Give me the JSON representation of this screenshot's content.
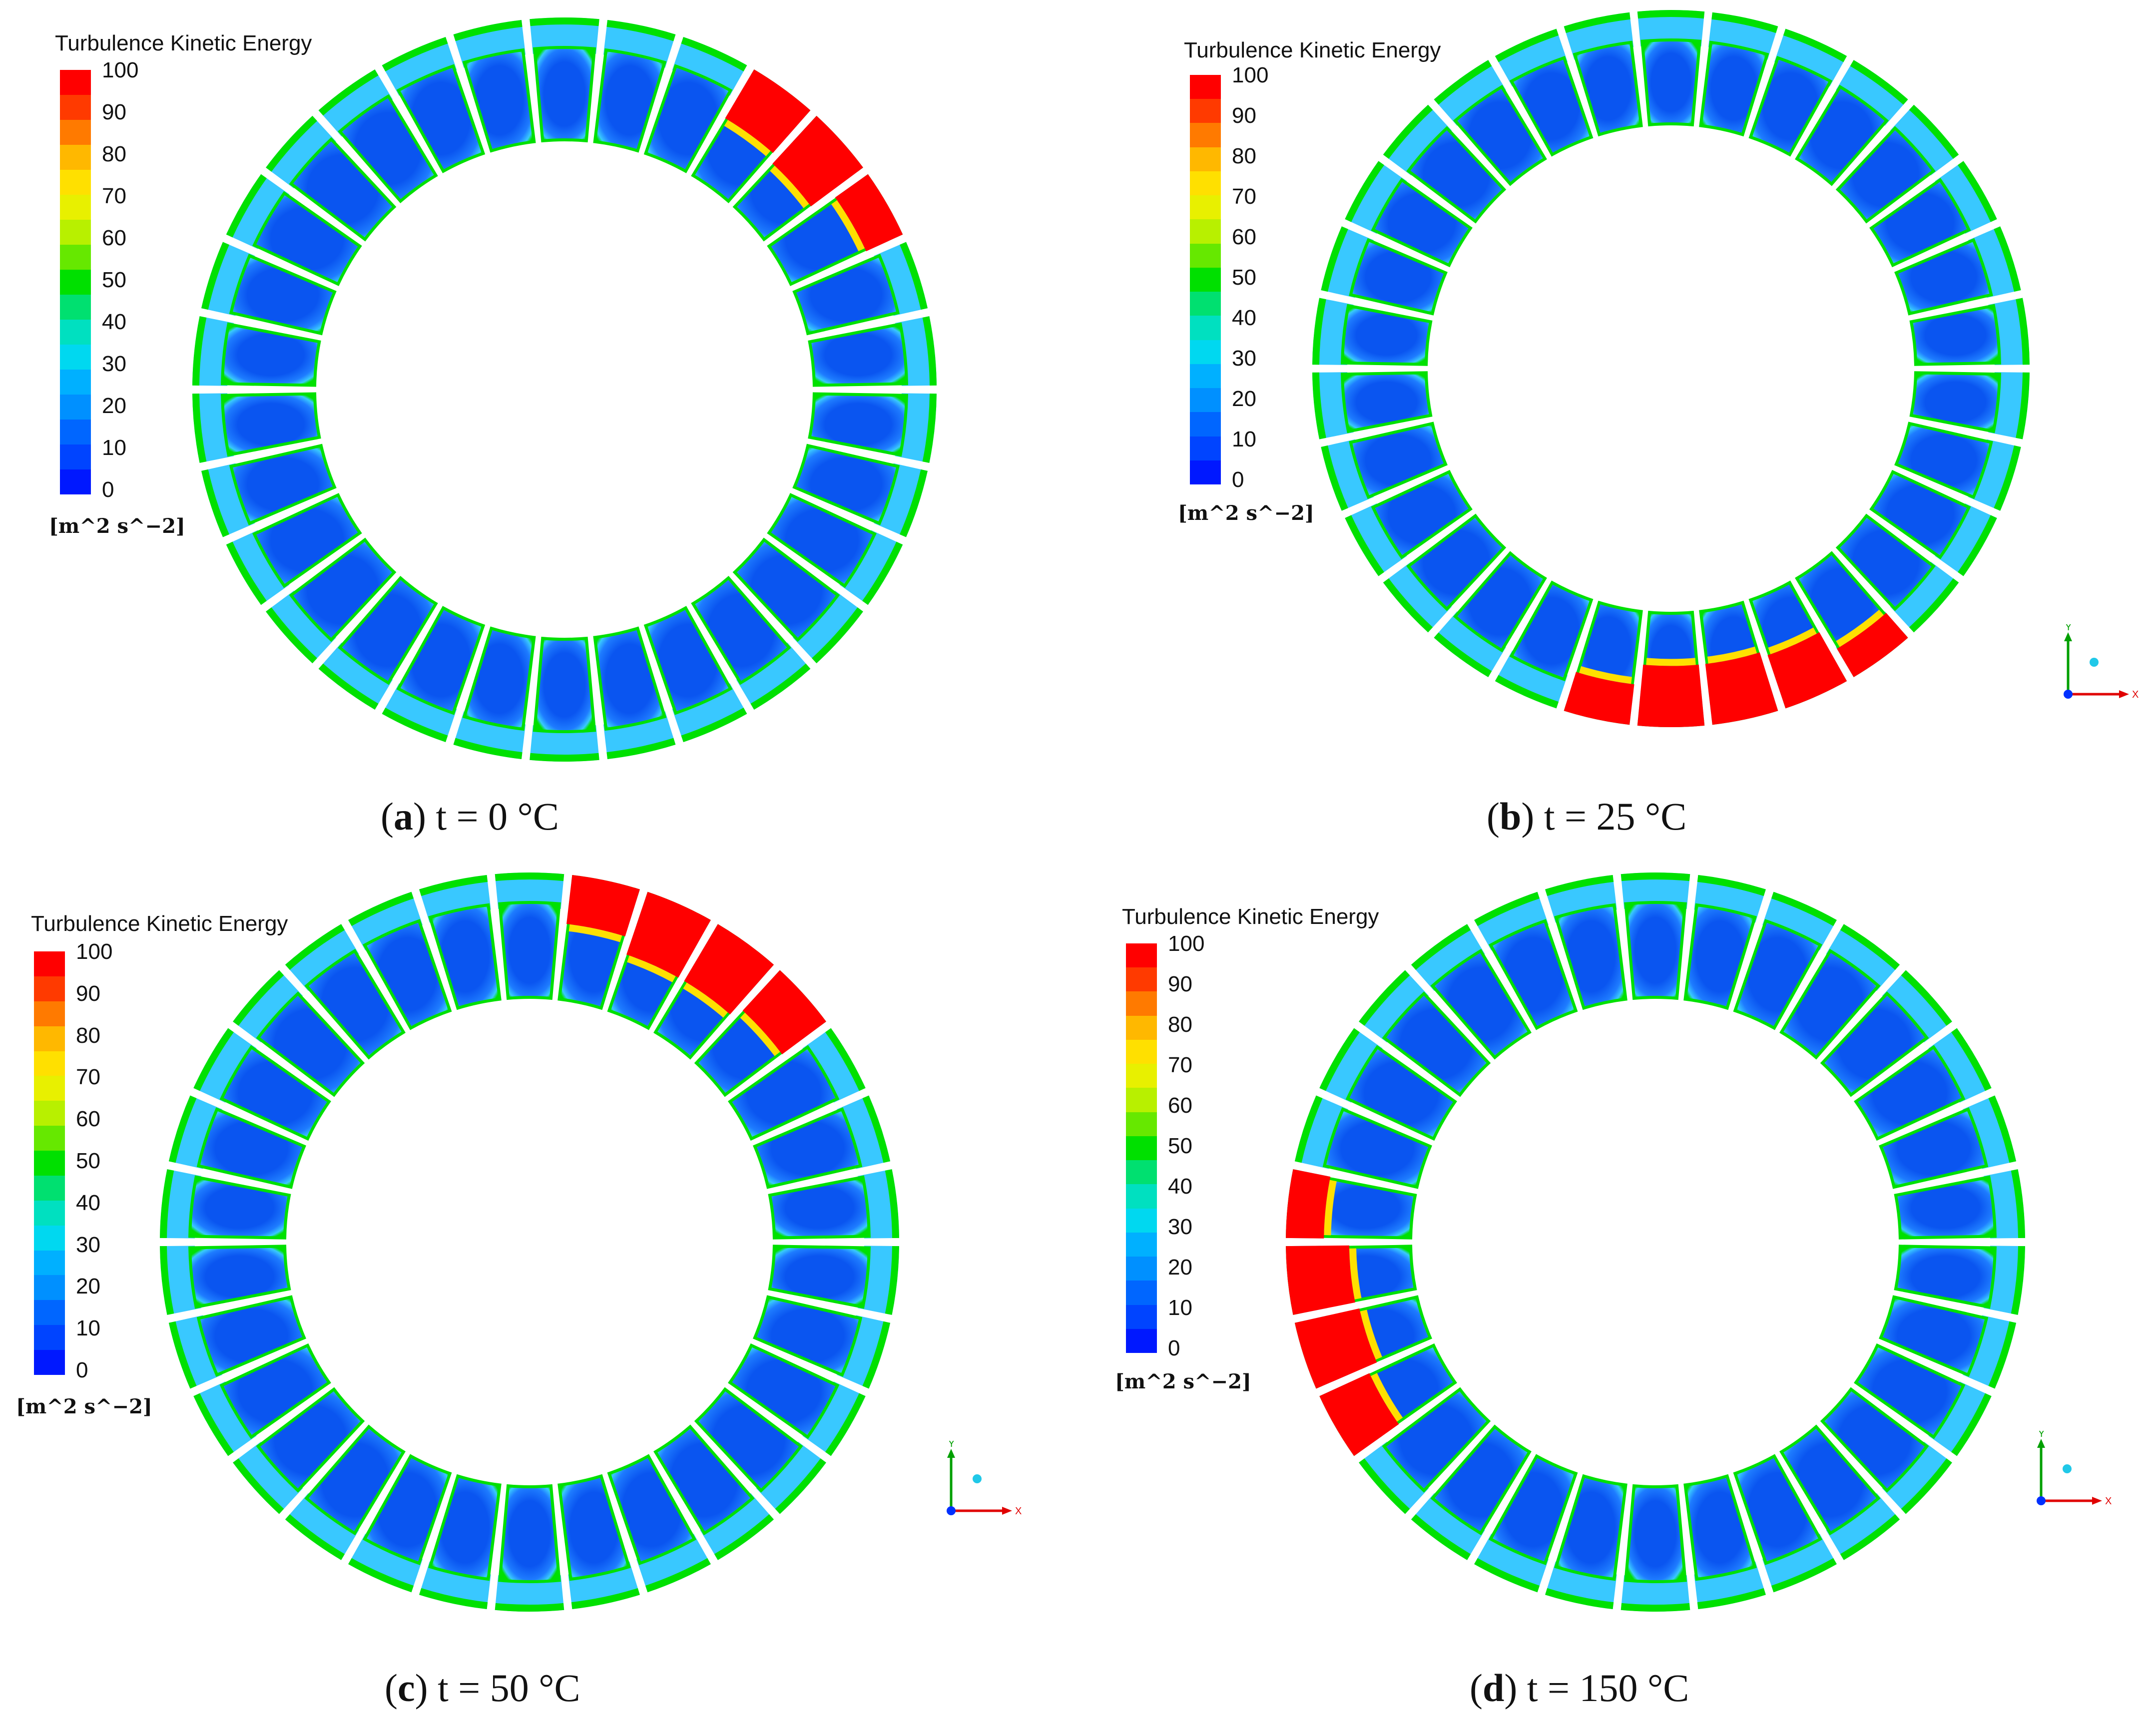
{
  "figure": {
    "legend_title": "Turbulence Kinetic Energy",
    "legend_unit": "[m^2 s^−2]",
    "legend_ticks": [
      "100",
      "90",
      "80",
      "70",
      "60",
      "50",
      "40",
      "30",
      "20",
      "10",
      "0"
    ],
    "colorscale": [
      "#ff0000",
      "#ff3a00",
      "#ff7a00",
      "#ffb800",
      "#ffe000",
      "#e8f000",
      "#b8f000",
      "#66e800",
      "#00e000",
      "#00e070",
      "#00e0c0",
      "#00d8f0",
      "#00b0ff",
      "#0090ff",
      "#0066ff",
      "#0044ff",
      "#0018ff"
    ],
    "axis_labels": {
      "y": "Y",
      "x": "X"
    },
    "colors": {
      "low": "#0a55f0",
      "mid": "#39c8ff",
      "edge": "#00e000",
      "high": "#ff0000"
    },
    "blade_count": 30
  },
  "panels": [
    {
      "id": "a",
      "letter": "a",
      "text": "t = 0 °C",
      "condition_C": 0,
      "show_axes": false,
      "hot_sectors": [
        [
          2,
          3,
          4
        ],
        [
          0.55,
          1.0,
          0.85
        ]
      ]
    },
    {
      "id": "b",
      "letter": "b",
      "text": "t = 25 °C",
      "condition_C": 25,
      "show_axes": true,
      "hot_sectors": [
        [
          21,
          22,
          23,
          24,
          25
        ],
        [
          0.6,
          1.0,
          1.0,
          0.9,
          0.45
        ]
      ]
    },
    {
      "id": "c",
      "letter": "c",
      "text": "t = 50 °C",
      "condition_C": 50,
      "show_axes": true,
      "hot_sectors": [
        [
          3,
          4,
          5,
          6
        ],
        [
          0.8,
          1.0,
          1.0,
          0.7
        ]
      ]
    },
    {
      "id": "d",
      "letter": "d",
      "text": "t = 150 °C",
      "condition_C": 150,
      "show_axes": true,
      "hot_sectors": [
        [
          14,
          15,
          16,
          17
        ],
        [
          0.5,
          0.95,
          1.0,
          0.8
        ]
      ]
    }
  ]
}
